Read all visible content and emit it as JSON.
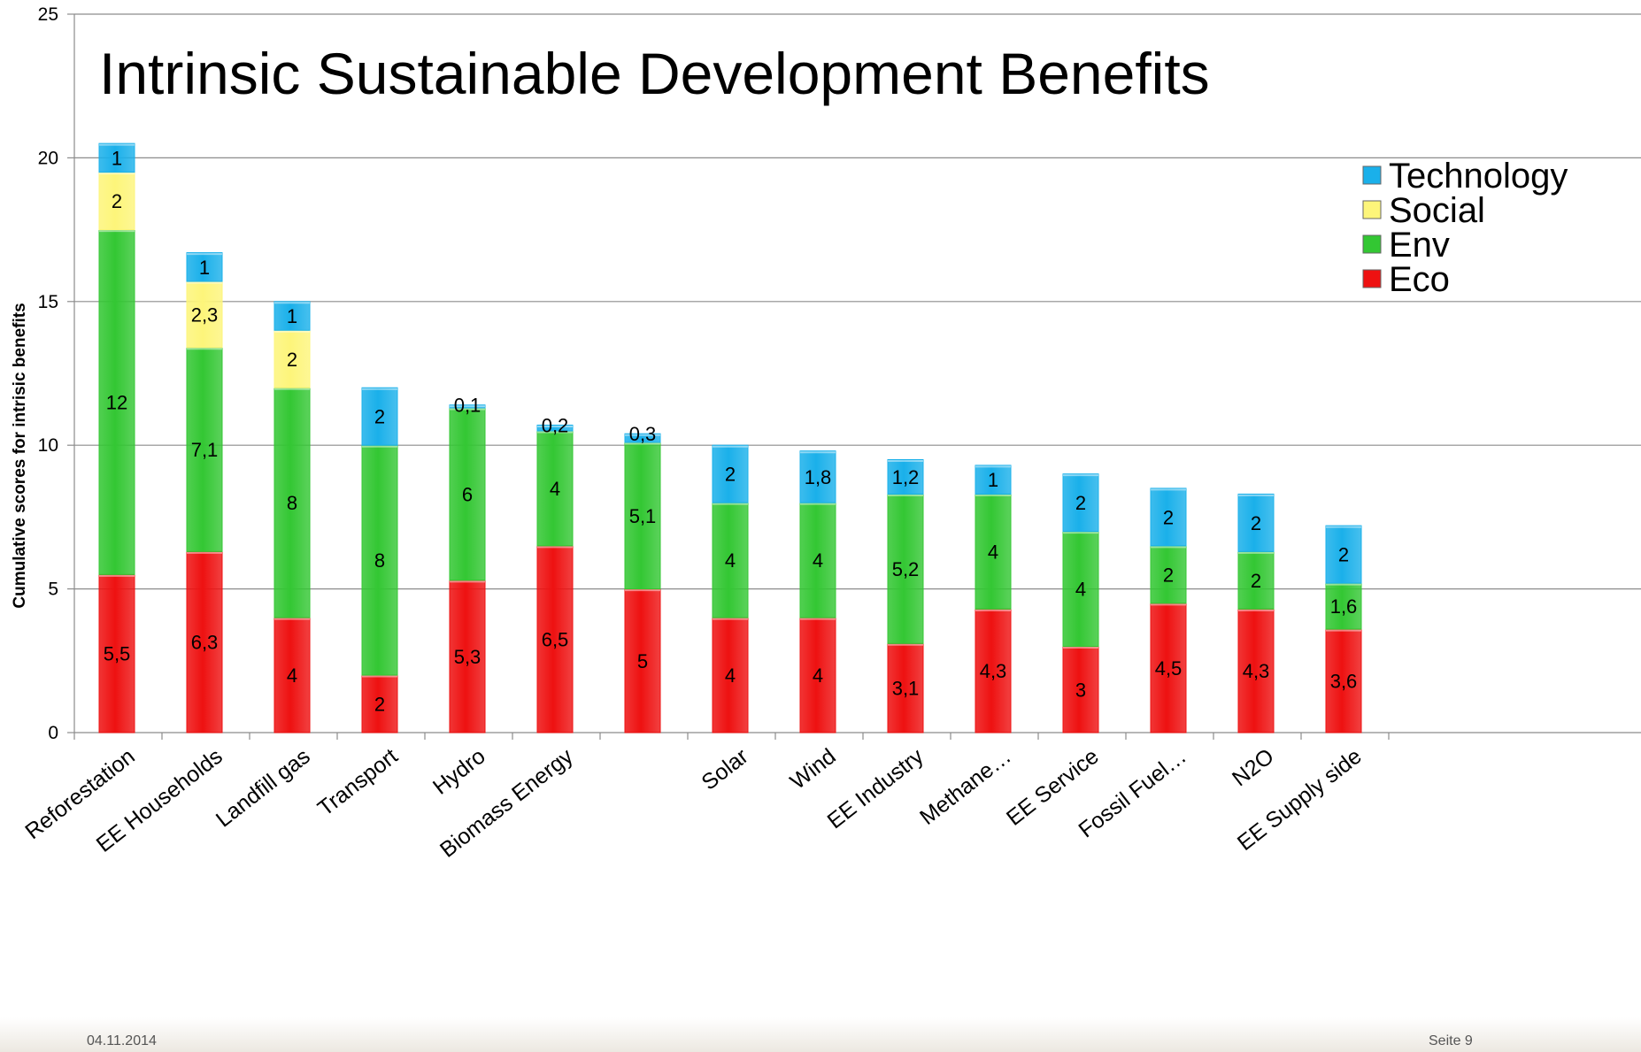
{
  "chart_data": {
    "type": "bar",
    "stacked": true,
    "title": "Intrinsic Sustainable Development Benefits",
    "ylabel": "Cumulative scores for intrisic benefits",
    "xlabel": "",
    "ylim": [
      0,
      25
    ],
    "yticks": [
      0,
      5,
      10,
      15,
      20,
      25
    ],
    "grid": true,
    "legend_position": "top-right",
    "categories": [
      "Reforestation",
      "EE Households",
      "Landfill gas",
      "Transport",
      "Hydro",
      "Biomass Energy",
      "",
      "Solar",
      "Wind",
      "EE Industry",
      "Methane…",
      "EE Service",
      "Fossil Fuel…",
      "N2O",
      "EE Supply side"
    ],
    "series": [
      {
        "name": "Eco",
        "color": "#ee1111",
        "values": [
          5.5,
          6.3,
          4,
          2,
          5.3,
          6.5,
          5,
          4,
          4,
          3.1,
          4.3,
          3,
          4.5,
          4.3,
          3.6
        ],
        "labels": [
          "5,5",
          "6,3",
          "4",
          "2",
          "5,3",
          "6,5",
          "5",
          "4",
          "4",
          "3,1",
          "4,3",
          "3",
          "4,5",
          "4,3",
          "3,6"
        ]
      },
      {
        "name": "Env",
        "color": "#33c733",
        "values": [
          12,
          7.1,
          8,
          8,
          6,
          4,
          5.1,
          4,
          4,
          5.2,
          4,
          4,
          2,
          2,
          1.6
        ],
        "labels": [
          "12",
          "7,1",
          "8",
          "8",
          "6",
          "4",
          "5,1",
          "4",
          "4",
          "5,2",
          "4",
          "4",
          "2",
          "2",
          "1,6"
        ]
      },
      {
        "name": "Social",
        "color": "#fdf57a",
        "values": [
          2,
          2.3,
          2,
          0,
          0,
          0,
          0,
          0,
          0,
          0,
          0,
          0,
          0,
          0,
          0
        ],
        "labels": [
          "2",
          "2,3",
          "2",
          "",
          "",
          "",
          "",
          "",
          "",
          "",
          "",
          "",
          "",
          "",
          ""
        ]
      },
      {
        "name": "Technology",
        "color": "#1ab0ea",
        "values": [
          1,
          1,
          1,
          2,
          0.1,
          0.2,
          0.3,
          2,
          1.8,
          1.2,
          1,
          2,
          2,
          2,
          2
        ],
        "labels": [
          "1",
          "1",
          "1",
          "2",
          "0,1",
          "0,2",
          "0,3",
          "2",
          "1,8",
          "1,2",
          "1",
          "2",
          "2",
          "2",
          "2"
        ]
      }
    ],
    "legend_order": [
      "Technology",
      "Social",
      "Env",
      "Eco"
    ]
  },
  "footer": {
    "date": "04.11.2014",
    "page": "Seite 9"
  }
}
